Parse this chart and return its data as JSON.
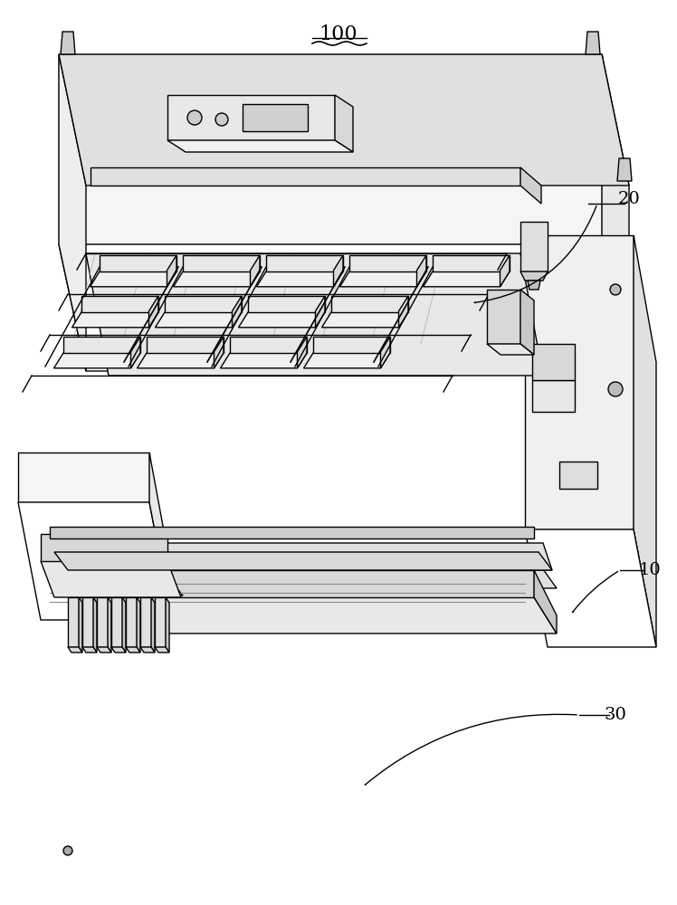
{
  "title": "100",
  "label_20": "20",
  "label_10": "10",
  "label_30": "30",
  "bg_color": "#ffffff",
  "line_color": "#000000",
  "line_width": 1.0,
  "fig_width": 7.48,
  "fig_height": 10.0,
  "dpi": 100
}
